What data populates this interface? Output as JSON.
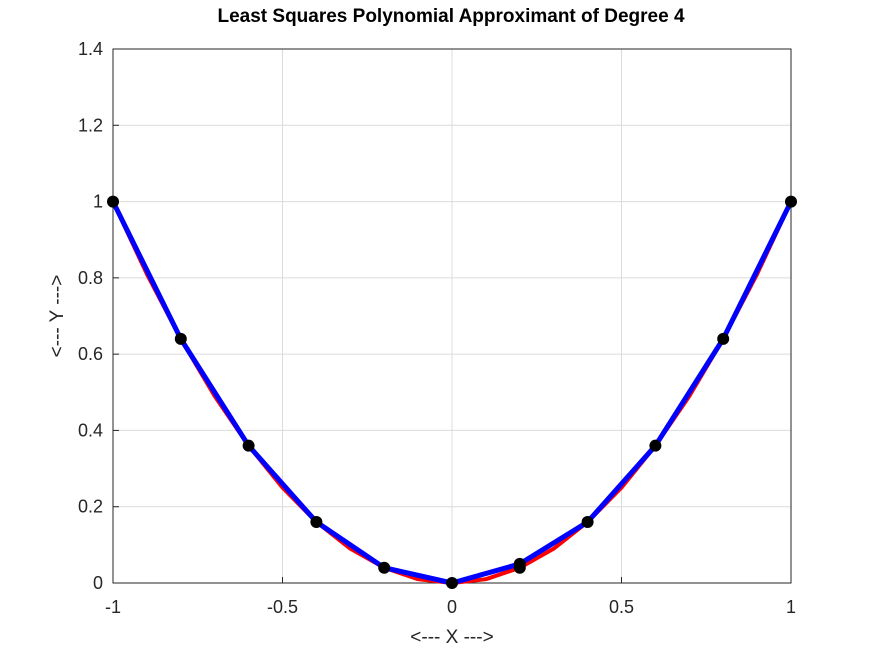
{
  "chart_data": {
    "type": "line",
    "title": "Least Squares Polynomial Approximant of Degree 4",
    "xlabel": "<--- X --->",
    "ylabel": "<--- Y --->",
    "xlim": [
      -1,
      1
    ],
    "ylim": [
      0,
      1.4
    ],
    "xticks": [
      -1,
      -0.5,
      0,
      0.5,
      1
    ],
    "xtick_labels": [
      "-1",
      "-0.5",
      "0",
      "0.5",
      "1"
    ],
    "yticks": [
      0,
      0.2,
      0.4,
      0.6,
      0.8,
      1,
      1.2,
      1.4
    ],
    "ytick_labels": [
      "0",
      "0.2",
      "0.4",
      "0.6",
      "0.8",
      "1",
      "1.2",
      "1.4"
    ],
    "grid": true,
    "series": [
      {
        "color": "#ff0000",
        "style": "line",
        "x": [
          -1,
          -0.9,
          -0.8,
          -0.7,
          -0.6,
          -0.5,
          -0.4,
          -0.3,
          -0.2,
          -0.1,
          0,
          0.1,
          0.2,
          0.3,
          0.4,
          0.5,
          0.6,
          0.7,
          0.8,
          0.9,
          1
        ],
        "y": [
          1,
          0.81,
          0.64,
          0.49,
          0.36,
          0.25,
          0.16,
          0.09,
          0.04,
          0.01,
          0,
          0.01,
          0.04,
          0.09,
          0.16,
          0.25,
          0.36,
          0.49,
          0.64,
          0.81,
          1
        ]
      },
      {
        "color": "#0000ff",
        "style": "line",
        "x": [
          -1,
          -0.8,
          -0.6,
          -0.4,
          -0.2,
          0,
          0.2,
          0.4,
          0.6,
          0.8,
          1
        ],
        "y": [
          1,
          0.64,
          0.36,
          0.16,
          0.04,
          0,
          0.05,
          0.16,
          0.36,
          0.64,
          1
        ]
      },
      {
        "color": "#000000",
        "style": "markers",
        "x": [
          -1,
          -0.8,
          -0.6,
          -0.4,
          -0.2,
          0,
          0.2,
          0.2,
          0.4,
          0.6,
          0.8,
          1
        ],
        "y": [
          1,
          0.64,
          0.36,
          0.16,
          0.04,
          0,
          0.04,
          0.05,
          0.16,
          0.36,
          0.64,
          1
        ]
      }
    ]
  }
}
